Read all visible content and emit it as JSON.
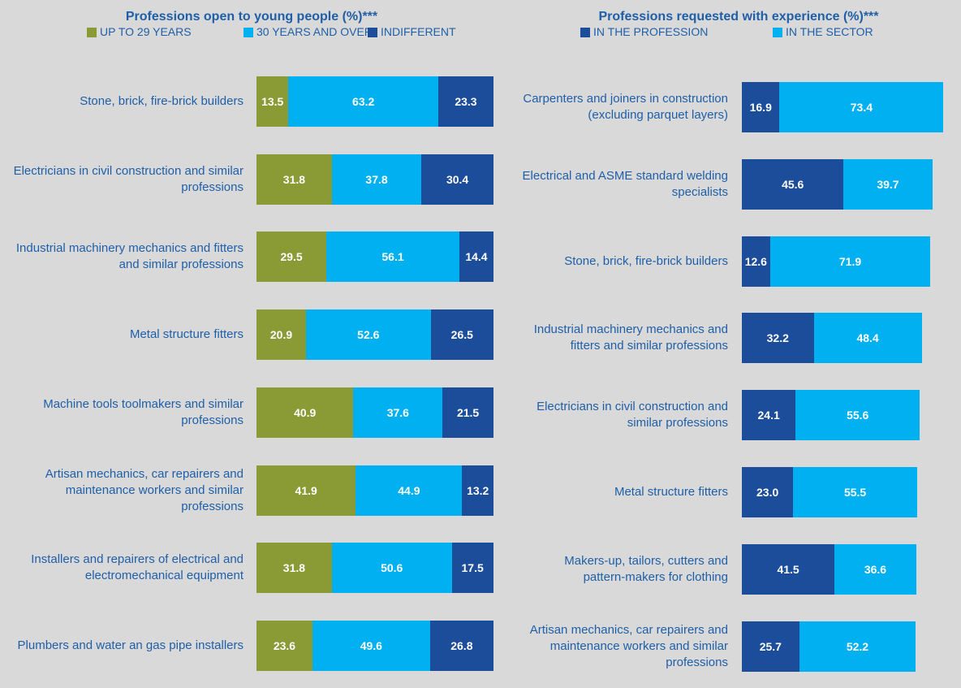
{
  "chart_data": [
    {
      "type": "bar",
      "orientation": "horizontal",
      "stacked": true,
      "title": "Professions open to young people (%)***",
      "categories": [
        "Stone, brick, fire-brick builders",
        "Electricians in civil construction and similar professions",
        "Industrial machinery mechanics and fitters and similar professions",
        "Metal structure fitters",
        "Machine tools toolmakers and similar professions",
        "Artisan mechanics, car repairers and maintenance workers and similar professions",
        "Installers and repairers of electrical and electromechanical equipment",
        "Plumbers and water an gas pipe installers"
      ],
      "series": [
        {
          "name": "UP TO 29 YEARS",
          "color": "#8a9a35",
          "values": [
            13.5,
            31.8,
            29.5,
            20.9,
            40.9,
            41.9,
            31.8,
            23.6
          ],
          "value_labels": [
            "13.5",
            "31.8",
            "29.5",
            "20.9",
            "40.9",
            "41.9",
            "31.8",
            "23.6"
          ]
        },
        {
          "name": "30 YEARS AND OVER",
          "color": "#00b0f0",
          "values": [
            63.2,
            37.8,
            56.1,
            52.6,
            37.6,
            44.9,
            50.6,
            49.6
          ],
          "value_labels": [
            "63.2",
            "37.8",
            "56.1",
            "52.6",
            "37.6",
            "44.9",
            "50.6",
            "49.6"
          ]
        },
        {
          "name": "INDIFFERENT",
          "color": "#1c4d9b",
          "values": [
            23.3,
            30.4,
            14.4,
            26.5,
            21.5,
            13.2,
            17.5,
            26.8
          ],
          "value_labels": [
            "23.3",
            "30.4",
            "14.4",
            "26.5",
            "21.5",
            "13.2",
            "17.5",
            "26.8"
          ]
        }
      ],
      "xlim": [
        0,
        100
      ]
    },
    {
      "type": "bar",
      "orientation": "horizontal",
      "stacked": true,
      "title": "Professions requested with experience (%)***",
      "categories": [
        "Carpenters and joiners in construction (excluding parquet layers)",
        "Electrical and ASME standard welding specialists",
        "Stone, brick, fire-brick builders",
        "Industrial machinery mechanics and fitters and similar professions",
        "Electricians in civil construction and similar professions",
        "Metal structure fitters",
        "Makers-up, tailors, cutters and pattern-makers for clothing",
        "Artisan mechanics, car repairers and maintenance workers and similar professions"
      ],
      "series": [
        {
          "name": "IN THE PROFESSION",
          "color": "#1c4d9b",
          "values": [
            16.9,
            45.6,
            12.6,
            32.2,
            24.1,
            23.0,
            41.5,
            25.7
          ],
          "value_labels": [
            "16.9",
            "45.6",
            "12.6",
            "32.2",
            "24.1",
            "23.0",
            "41.5",
            "25.7"
          ]
        },
        {
          "name": "IN THE SECTOR",
          "color": "#00b0f0",
          "values": [
            73.4,
            39.7,
            71.9,
            48.4,
            55.6,
            55.5,
            36.6,
            52.2
          ],
          "value_labels": [
            "73.4",
            "39.7",
            "71.9",
            "48.4",
            "55.6",
            "55.5",
            "36.6",
            "52.2"
          ]
        }
      ],
      "xlim": [
        0,
        100
      ]
    }
  ]
}
